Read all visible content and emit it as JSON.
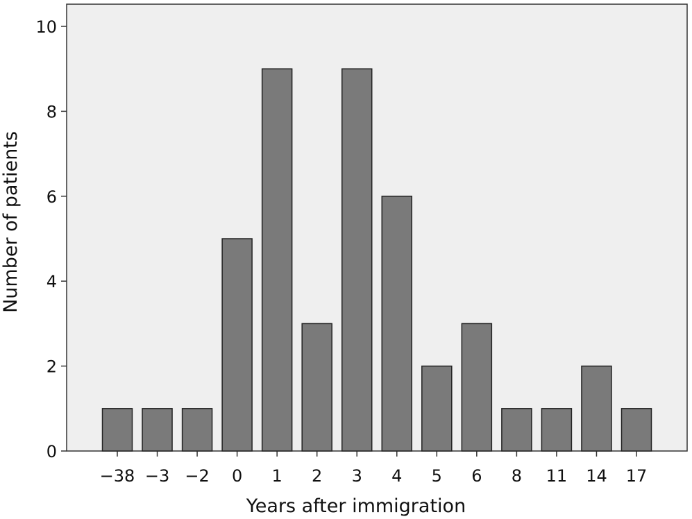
{
  "chart_data": {
    "type": "bar",
    "title": "",
    "xlabel": "Years after immigration",
    "ylabel": "Number of patients",
    "categories": [
      "−38",
      "−3",
      "−2",
      "0",
      "1",
      "2",
      "3",
      "4",
      "5",
      "6",
      "8",
      "11",
      "14",
      "17"
    ],
    "values": [
      1,
      1,
      1,
      5,
      9,
      3,
      9,
      6,
      2,
      3,
      1,
      1,
      2,
      1
    ],
    "ylim": [
      0,
      10
    ],
    "yticks": [
      "0",
      "2",
      "4",
      "6",
      "8",
      "10"
    ],
    "grid": false,
    "legend": "none",
    "colors": {
      "plot_background": "#efefef",
      "bar_fill": "#7a7a7a",
      "bar_stroke": "#222222",
      "axis": "#333333"
    }
  }
}
